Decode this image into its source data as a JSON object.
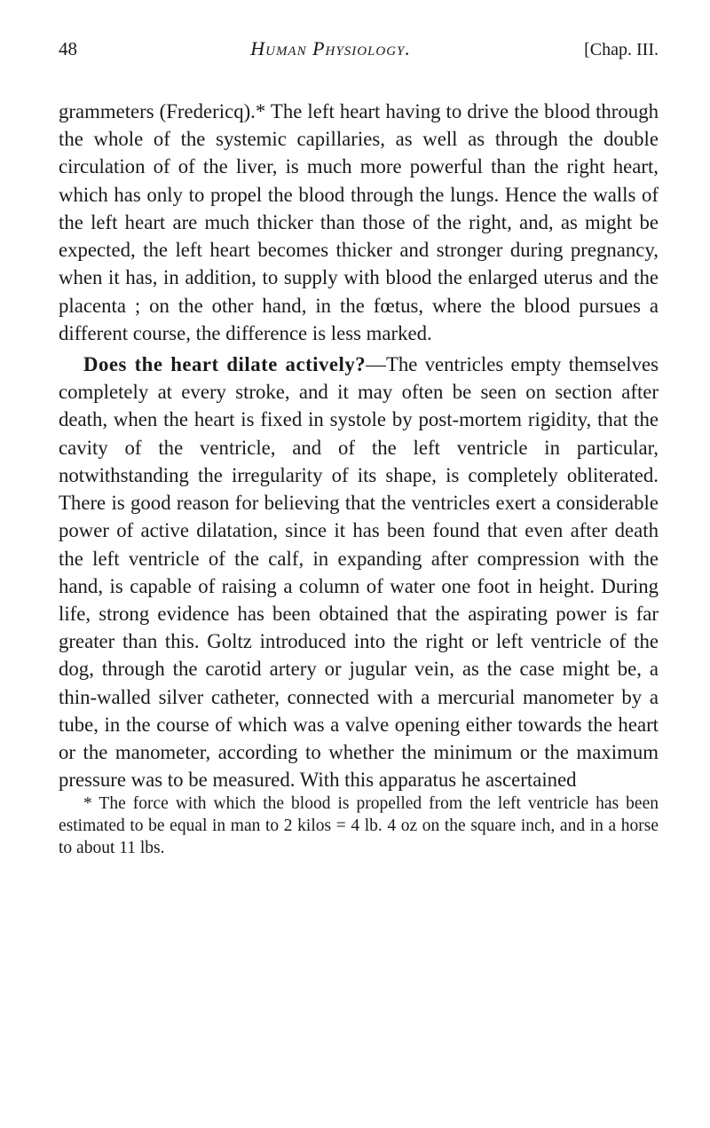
{
  "header": {
    "page_number": "48",
    "book_title": "Human Physiology.",
    "chapter": "[Chap. III."
  },
  "paragraph1": "grammeters (Fredericq).* The left heart having to drive the blood through the whole of the systemic capillaries, as well as through the double circulation of of the liver, is much more powerful than the right heart, which has only to propel the blood through the lungs. Hence the walls of the left heart are much thicker than those of the right, and, as might be expected, the left heart becomes thicker and stronger during pregnancy, when it has, in addition, to supply with blood the en­larged uterus and the placenta ; on the other hand, in the fœtus, where the blood pursues a different course, the difference is less marked.",
  "paragraph2_head": "Does the heart dilate actively?",
  "paragraph2_body": "—The ven­tricles empty themselves completely at every stroke, and it may often be seen on section after death, when the heart is fixed in systole by post-mortem rigidity, that the cavity of the ventricle, and of the left ven­tricle in particular, notwithstanding the irregularity of its shape, is completely obliterated. There is good reason for believing that the ventricles exert a con­siderable power of active dilatation, since it has been found that even after death the left ventricle of the calf, in expanding after compression with the hand, is capable of raising a column of water one foot in height. During life, strong evidence has been ob­tained that the aspirating power is far greater than this. Goltz introduced into the right or left ventricle of the dog, through the carotid artery or jugular vein, as the case might be, a thin-walled silver catheter, connected with a mercurial manometer by a tube, in the course of which was a valve opening either towards the heart or the manometer, according to whether the minimum or the maximum pressure was to be measured. With this apparatus he ascertained",
  "footnote": "* The force with which the blood is propelled from the left ventricle has been estimated to be equal in man to 2 kilos = 4 lb. 4 oz on the square inch, and in a horse to about 11 lbs."
}
